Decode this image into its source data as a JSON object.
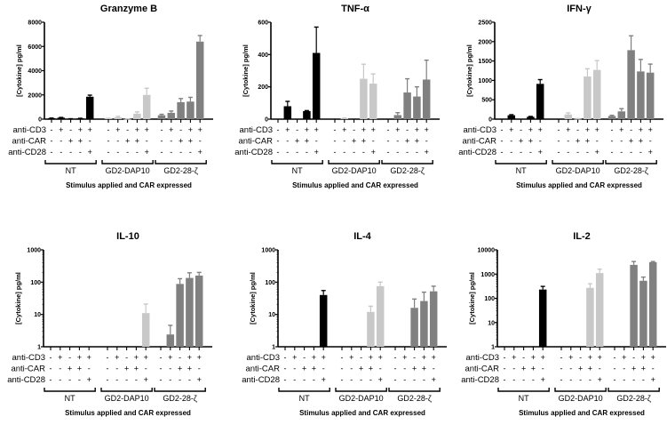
{
  "colors": {
    "NT": "#000000",
    "GD2-DAP10": "#c8c8c8",
    "GD2-28-ζ": "#808080"
  },
  "conditions": {
    "rows": [
      "anti-CD3",
      "anti-CAR",
      "anti-CD28"
    ],
    "signs": [
      [
        "-",
        "+",
        "-",
        "+",
        "+"
      ],
      [
        "-",
        "-",
        "+",
        "+",
        "-"
      ],
      [
        "-",
        "-",
        "-",
        "-",
        "+"
      ]
    ]
  },
  "groups": [
    "NT",
    "GD2-DAP10",
    "GD2-28-ζ"
  ],
  "chart_data": [
    {
      "type": "bar",
      "title": "Granzyme B",
      "ylabel": "[Cytokine] pg/ml",
      "xlabel": "Stimulus applied and CAR expressed",
      "scale": "linear",
      "ylim": [
        0,
        8000
      ],
      "yticks": [
        0,
        2000,
        4000,
        6000,
        8000
      ],
      "series": [
        {
          "name": "NT",
          "values": [
            80,
            120,
            30,
            60,
            1850
          ],
          "errors": [
            10,
            20,
            5,
            10,
            130
          ]
        },
        {
          "name": "GD2-DAP10",
          "values": [
            60,
            150,
            20,
            450,
            2000
          ],
          "errors": [
            10,
            80,
            5,
            150,
            550
          ]
        },
        {
          "name": "GD2-28-ζ",
          "values": [
            320,
            520,
            1400,
            1450,
            6400
          ],
          "errors": [
            80,
            150,
            300,
            350,
            500
          ]
        }
      ]
    },
    {
      "type": "bar",
      "title": "TNF-α",
      "ylabel": "[Cytokine] pg/ml",
      "xlabel": "Stimulus applied and CAR expressed",
      "scale": "linear",
      "ylim": [
        0,
        600
      ],
      "yticks": [
        0,
        200,
        400,
        600
      ],
      "series": [
        {
          "name": "NT",
          "values": [
            0,
            80,
            0,
            50,
            410
          ],
          "errors": [
            0,
            30,
            0,
            3,
            160
          ]
        },
        {
          "name": "GD2-DAP10",
          "values": [
            0,
            5,
            0,
            250,
            220
          ],
          "errors": [
            0,
            2,
            0,
            90,
            60
          ]
        },
        {
          "name": "GD2-28-ζ",
          "values": [
            0,
            25,
            165,
            140,
            245
          ],
          "errors": [
            0,
            15,
            85,
            60,
            120
          ]
        }
      ]
    },
    {
      "type": "bar",
      "title": "IFN-γ",
      "ylabel": "[Cytokine] pg/ml",
      "xlabel": "Stimulus applied and CAR expressed",
      "scale": "linear",
      "ylim": [
        0,
        2500
      ],
      "yticks": [
        0,
        500,
        1000,
        1500,
        2000,
        2500
      ],
      "series": [
        {
          "name": "NT",
          "values": [
            0,
            100,
            0,
            60,
            910
          ],
          "errors": [
            0,
            15,
            0,
            10,
            110
          ]
        },
        {
          "name": "GD2-DAP10",
          "values": [
            0,
            120,
            10,
            1100,
            1270
          ],
          "errors": [
            0,
            40,
            5,
            200,
            240
          ]
        },
        {
          "name": "GD2-28-ζ",
          "values": [
            80,
            200,
            1780,
            1230,
            1200
          ],
          "errors": [
            20,
            70,
            370,
            310,
            220
          ]
        }
      ]
    },
    {
      "type": "bar",
      "title": "IL-10",
      "ylabel": "[Cytokine] pg/ml",
      "xlabel": "Stimulus applied and CAR expressed",
      "scale": "log",
      "ylim": [
        1,
        1000
      ],
      "yticks": [
        1,
        10,
        100,
        1000
      ],
      "series": [
        {
          "name": "NT",
          "values": [
            null,
            null,
            null,
            null,
            null
          ],
          "errors": [
            0,
            0,
            0,
            0,
            0
          ]
        },
        {
          "name": "GD2-DAP10",
          "values": [
            null,
            null,
            null,
            null,
            11
          ],
          "errors": [
            0,
            0,
            0,
            0,
            10
          ]
        },
        {
          "name": "GD2-28-ζ",
          "values": [
            null,
            2.4,
            88,
            135,
            160
          ],
          "errors": [
            0,
            2.2,
            40,
            60,
            40
          ]
        }
      ]
    },
    {
      "type": "bar",
      "title": "IL-4",
      "ylabel": "[Cytokine] pg/ml",
      "xlabel": "Stimulus applied and CAR expressed",
      "scale": "log",
      "ylim": [
        1,
        1000
      ],
      "yticks": [
        1,
        10,
        100,
        1000
      ],
      "series": [
        {
          "name": "NT",
          "values": [
            null,
            null,
            null,
            null,
            40
          ],
          "errors": [
            0,
            0,
            0,
            0,
            15
          ]
        },
        {
          "name": "GD2-DAP10",
          "values": [
            null,
            null,
            null,
            12,
            75
          ],
          "errors": [
            0,
            0,
            0,
            6,
            25
          ]
        },
        {
          "name": "GD2-28-ζ",
          "values": [
            null,
            null,
            16,
            26,
            52
          ],
          "errors": [
            0,
            0,
            14,
            23,
            23
          ]
        }
      ]
    },
    {
      "type": "bar",
      "title": "IL-2",
      "ylabel": "[Cytokine] pg/ml",
      "xlabel": "Stimulus applied and CAR expressed",
      "scale": "log",
      "ylim": [
        1,
        10000
      ],
      "yticks": [
        1,
        10,
        100,
        1000,
        10000
      ],
      "series": [
        {
          "name": "NT",
          "values": [
            null,
            null,
            null,
            null,
            230
          ],
          "errors": [
            0,
            0,
            0,
            0,
            80
          ]
        },
        {
          "name": "GD2-DAP10",
          "values": [
            null,
            null,
            null,
            270,
            1100
          ],
          "errors": [
            0,
            0,
            0,
            130,
            500
          ]
        },
        {
          "name": "GD2-28-ζ",
          "values": [
            null,
            null,
            2400,
            530,
            3100
          ],
          "errors": [
            0,
            0,
            900,
            220,
            200
          ]
        }
      ]
    }
  ]
}
